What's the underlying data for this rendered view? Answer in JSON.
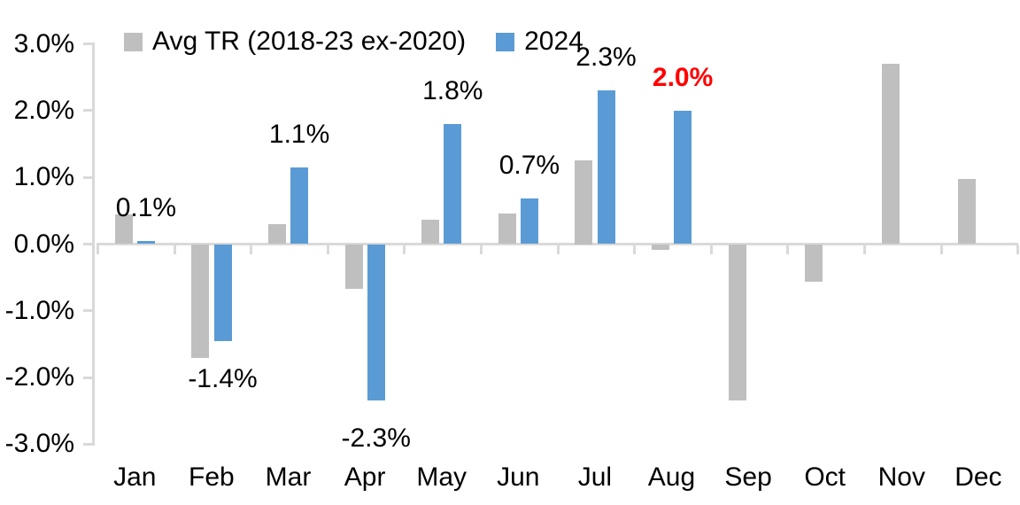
{
  "chart_data": {
    "type": "bar",
    "title": "",
    "categories": [
      "Jan",
      "Feb",
      "Mar",
      "Apr",
      "May",
      "Jun",
      "Jul",
      "Aug",
      "Sep",
      "Oct",
      "Nov",
      "Dec"
    ],
    "series": [
      {
        "name": "Avg TR (2018-23 ex-2020)",
        "color": "#BFBFBF",
        "values": [
          0.45,
          -1.7,
          0.3,
          -0.67,
          0.36,
          0.46,
          1.25,
          -0.08,
          -2.35,
          -0.57,
          2.7,
          0.97
        ]
      },
      {
        "name": "2024",
        "color": "#5B9BD5",
        "values": [
          0.05,
          -1.45,
          1.15,
          -2.35,
          1.8,
          0.68,
          2.3,
          2.0,
          null,
          null,
          null,
          null
        ],
        "data_labels": [
          {
            "text": "0.1%",
            "color": "#000000",
            "bold": false
          },
          {
            "text": "-1.4%",
            "color": "#000000",
            "bold": false
          },
          {
            "text": "1.1%",
            "color": "#000000",
            "bold": false
          },
          {
            "text": "-2.3%",
            "color": "#000000",
            "bold": false
          },
          {
            "text": "1.8%",
            "color": "#000000",
            "bold": false
          },
          {
            "text": "0.7%",
            "color": "#000000",
            "bold": false
          },
          {
            "text": "2.3%",
            "color": "#000000",
            "bold": false
          },
          {
            "text": "2.0%",
            "color": "#FF0000",
            "bold": true
          },
          null,
          null,
          null,
          null
        ]
      }
    ],
    "ylim": [
      -3,
      3
    ],
    "ytick_labels": [
      "3.0%",
      "2.0%",
      "1.0%",
      "0.0%",
      "-1.0%",
      "-2.0%",
      "-3.0%"
    ],
    "grid": false,
    "legend_position": "top",
    "axis_color": "#D9D9D9",
    "text_color": "#000000",
    "background_color": "#FFFFFF"
  }
}
